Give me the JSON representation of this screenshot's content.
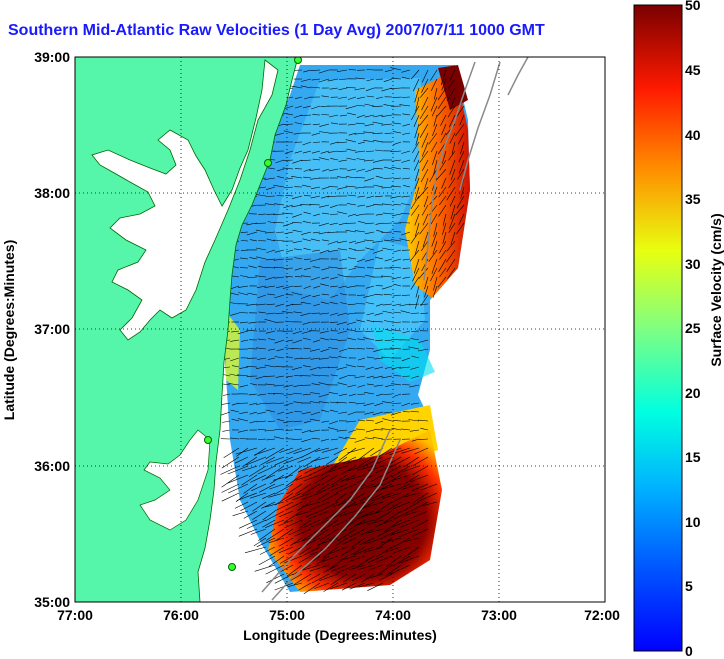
{
  "title": "Southern Mid-Atlantic Raw Velocities (1 Day Avg) 2007/07/11 1000 GMT",
  "x_axis": {
    "label": "Longitude (Degrees:Minutes)",
    "ticks": [
      "77:00",
      "76:00",
      "75:00",
      "74:00",
      "73:00",
      "72:00"
    ]
  },
  "y_axis": {
    "label": "Latitude (Degrees:Minutes)",
    "ticks": [
      "39:00",
      "38:00",
      "37:00",
      "36:00",
      "35:00"
    ]
  },
  "colorbar": {
    "label": "Surface Velocity (cm/s)",
    "ticks": [
      "50",
      "45",
      "40",
      "35",
      "30",
      "25",
      "20",
      "15",
      "10",
      "5",
      "0"
    ],
    "min": 0,
    "max": 50
  },
  "colors": {
    "land": "#55f5aa",
    "water_background": "#ffffff",
    "title_color": "#1a1aff",
    "grid": "dotted"
  }
}
